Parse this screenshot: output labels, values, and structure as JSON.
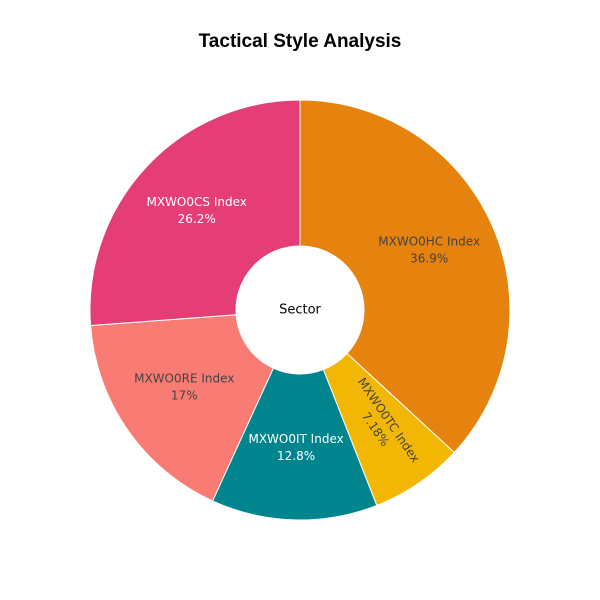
{
  "chart_data": {
    "type": "pie",
    "title": "Tactical Style Analysis",
    "center_label": "Sector",
    "hole": true,
    "slices": [
      {
        "label": "MXWO0HC Index",
        "value": 36.9,
        "value_text": "36.9%",
        "color": "#E6820E",
        "text_color": "#444444",
        "text_mode": "horizontal"
      },
      {
        "label": "MXWO0TC Index",
        "value": 7.18,
        "value_text": "7.18%",
        "color": "#F2B705",
        "text_color": "#444444",
        "text_mode": "radial"
      },
      {
        "label": "MXWO0IT Index",
        "value": 12.8,
        "value_text": "12.8%",
        "color": "#00858F",
        "text_color": "#ffffff",
        "text_mode": "horizontal"
      },
      {
        "label": "MXWO0RE Index",
        "value": 17,
        "value_text": "17%",
        "color": "#F87C73",
        "text_color": "#444444",
        "text_mode": "horizontal"
      },
      {
        "label": "MXWO0CS Index",
        "value": 26.2,
        "value_text": "26.2%",
        "color": "#E53E76",
        "text_color": "#ffffff",
        "text_mode": "horizontal"
      }
    ]
  }
}
